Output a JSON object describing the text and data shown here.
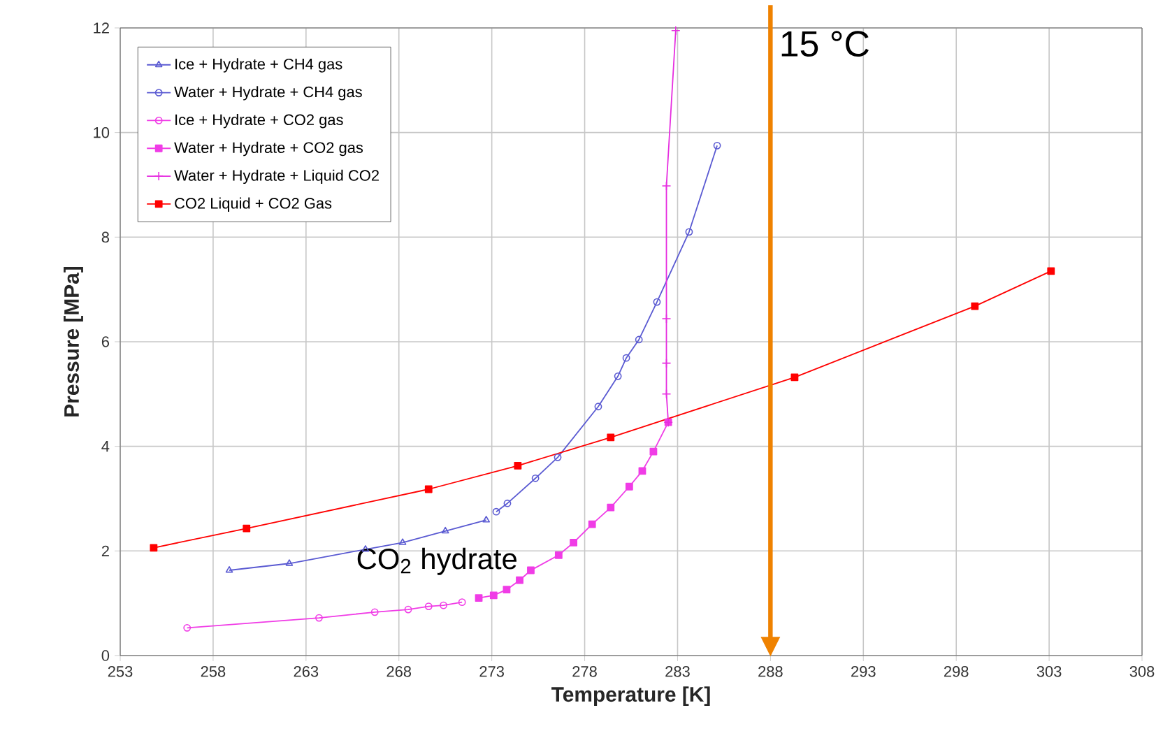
{
  "chart_data": {
    "type": "line",
    "xlabel": "Temperature [K]",
    "ylabel": "Pressure [MPa]",
    "xlim": [
      253,
      308
    ],
    "ylim": [
      0,
      12
    ],
    "xticks": [
      253,
      258,
      263,
      268,
      273,
      278,
      283,
      288,
      293,
      298,
      303,
      308
    ],
    "yticks": [
      0,
      2,
      4,
      6,
      8,
      10,
      12
    ],
    "grid": true,
    "legend": "top left",
    "series": [
      {
        "name": "Ice + Hydrate + CH4 gas",
        "color": "#5a5ad2",
        "marker": "triangle",
        "x": [
          258.87,
          262.1,
          266.2,
          268.2,
          270.5,
          272.7
        ],
        "values": [
          1.63,
          1.76,
          2.03,
          2.16,
          2.38,
          2.59
        ]
      },
      {
        "name": "Water + Hydrate + CH4 gas",
        "color": "#5a5ad2",
        "marker": "circle",
        "x": [
          273.24,
          273.84,
          275.35,
          276.55,
          278.73,
          279.79,
          280.24,
          280.92,
          281.89,
          283.62,
          285.13
        ],
        "values": [
          2.75,
          2.91,
          3.39,
          3.79,
          4.76,
          5.34,
          5.69,
          6.04,
          6.76,
          8.1,
          9.75
        ]
      },
      {
        "name": "Ice + Hydrate + CO2 gas",
        "color": "#f03ce6",
        "marker": "circle",
        "x": [
          256.6,
          263.7,
          266.7,
          268.5,
          269.6,
          270.4,
          271.4
        ],
        "values": [
          0.53,
          0.72,
          0.83,
          0.88,
          0.94,
          0.96,
          1.02
        ]
      },
      {
        "name": "Water + Hydrate + CO2 gas",
        "color": "#f03ce6",
        "marker": "square",
        "x": [
          272.3,
          273.1,
          273.8,
          274.5,
          275.1,
          276.6,
          277.4,
          278.4,
          279.4,
          280.4,
          281.1,
          281.7,
          282.5
        ],
        "values": [
          1.1,
          1.15,
          1.26,
          1.44,
          1.63,
          1.92,
          2.16,
          2.51,
          2.83,
          3.23,
          3.53,
          3.9,
          4.46
        ]
      },
      {
        "name": "Water + Hydrate + Liquid CO2",
        "color": "#e62ee0",
        "marker": "cross",
        "x": [
          282.5,
          282.4,
          282.4,
          282.4,
          282.4,
          282.9
        ],
        "values": [
          4.46,
          5.0,
          5.59,
          6.44,
          8.98,
          11.95
        ]
      },
      {
        "name": "CO2 Liquid + CO2 Gas",
        "color": "#ff0000",
        "marker": "square",
        "x": [
          254.8,
          259.8,
          269.6,
          274.4,
          279.4,
          289.3,
          299.0,
          303.1
        ],
        "values": [
          2.06,
          2.43,
          3.18,
          3.63,
          4.17,
          5.32,
          6.68,
          7.35
        ]
      }
    ],
    "ref_lines": [
      {
        "axis": "x",
        "value": 288,
        "label": "15 °C",
        "color": "#ef8200"
      }
    ],
    "annotations": [
      "CO$_{2}$ hydrate"
    ]
  }
}
